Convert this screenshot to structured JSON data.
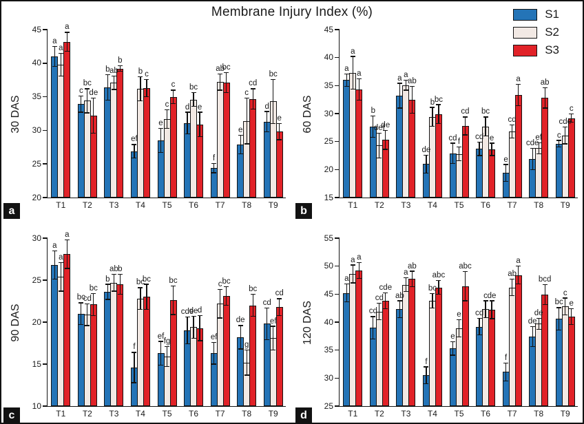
{
  "title": "Membrane Injury Index (%)",
  "legend": {
    "entries": [
      {
        "label": "S1",
        "color": "#2474B7"
      },
      {
        "label": "S2",
        "color": "#F2E9E4"
      },
      {
        "label": "S3",
        "color": "#E12228"
      }
    ]
  },
  "chart_data": [
    {
      "type": "bar",
      "panel_label": "a",
      "ylabel": "30 DAS",
      "ylim": [
        20,
        45
      ],
      "ytick_step": 5,
      "grid": false,
      "categories": [
        "T1",
        "T2",
        "T3",
        "T4",
        "T5",
        "T6",
        "T7",
        "T8",
        "T9"
      ],
      "series": [
        {
          "name": "S1",
          "color": "#2474B7",
          "values": [
            41.0,
            33.9,
            36.4,
            26.9,
            28.5,
            31.1,
            24.4,
            27.9,
            31.3
          ],
          "errors": [
            1.5,
            1.2,
            1.9,
            1.0,
            1.8,
            1.6,
            0.7,
            1.4,
            1.5
          ],
          "letters": [
            "a",
            "c",
            "b",
            "ef",
            "e",
            "d",
            "f",
            "e",
            "d"
          ]
        },
        {
          "name": "S2",
          "color": "#F2E9E4",
          "values": [
            39.8,
            34.4,
            37.1,
            36.2,
            31.7,
            34.6,
            37.2,
            31.4,
            34.3
          ],
          "errors": [
            1.7,
            1.8,
            1.0,
            1.8,
            1.4,
            1.0,
            1.2,
            3.4,
            3.3
          ],
          "letters": [
            "a",
            "bc",
            "ab",
            "b",
            "c",
            "bc",
            "ab",
            "c",
            "bc"
          ]
        },
        {
          "name": "S3",
          "color": "#E12228",
          "values": [
            43.2,
            32.2,
            39.2,
            36.3,
            35.0,
            30.9,
            37.1,
            34.7,
            29.8
          ],
          "errors": [
            1.4,
            2.6,
            0.4,
            1.3,
            1.0,
            1.8,
            1.5,
            1.5,
            1.2
          ],
          "letters": [
            "a",
            "de",
            "b",
            "c",
            "c",
            "e",
            "bc",
            "cd",
            "e"
          ]
        }
      ]
    },
    {
      "type": "bar",
      "panel_label": "b",
      "ylabel": "60 DAS",
      "ylim": [
        15,
        45
      ],
      "ytick_step": 5,
      "grid": false,
      "categories": [
        "T1",
        "T2",
        "T3",
        "T4",
        "T5",
        "T6",
        "T7",
        "T8",
        "T9"
      ],
      "series": [
        {
          "name": "S1",
          "color": "#2474B7",
          "values": [
            36.0,
            27.7,
            33.2,
            21.0,
            22.9,
            23.7,
            19.4,
            21.9,
            24.6
          ],
          "errors": [
            1.1,
            1.9,
            2.2,
            1.6,
            1.8,
            1.2,
            1.5,
            1.9,
            0.6
          ],
          "letters": [
            "a",
            "b",
            "a",
            "de",
            "cd",
            "cd",
            "e",
            "cde",
            "c"
          ]
        },
        {
          "name": "S2",
          "color": "#F2E9E4",
          "values": [
            37.3,
            24.3,
            35.1,
            29.4,
            22.8,
            27.7,
            26.8,
            23.8,
            26.1
          ],
          "errors": [
            2.9,
            2.2,
            0.9,
            1.7,
            1.2,
            1.7,
            1.2,
            1.0,
            1.5
          ],
          "letters": [
            "a",
            "def",
            "a",
            "b",
            "f",
            "bc",
            "cd",
            "ef",
            "cde"
          ]
        },
        {
          "name": "S3",
          "color": "#E12228",
          "values": [
            34.3,
            25.3,
            32.5,
            29.9,
            27.8,
            23.6,
            33.3,
            32.8,
            29.2
          ],
          "errors": [
            1.9,
            1.7,
            2.4,
            1.7,
            1.6,
            1.1,
            1.9,
            1.8,
            0.7
          ],
          "letters": [
            "a",
            "de",
            "ab",
            "bc",
            "cd",
            "e",
            "a",
            "ab",
            "c"
          ]
        }
      ]
    },
    {
      "type": "bar",
      "panel_label": "c",
      "ylabel": "90 DAS",
      "ylim": [
        10,
        30
      ],
      "ytick_step": 5,
      "grid": false,
      "categories": [
        "T1",
        "T2",
        "T3",
        "T4",
        "T5",
        "T6",
        "T7",
        "T8",
        "T9"
      ],
      "series": [
        {
          "name": "S1",
          "color": "#2474B7",
          "values": [
            26.8,
            21.0,
            23.6,
            14.6,
            16.3,
            19.0,
            16.3,
            18.2,
            19.8
          ],
          "errors": [
            1.7,
            1.3,
            0.9,
            1.8,
            1.4,
            1.6,
            1.3,
            1.4,
            1.9
          ],
          "letters": [
            "a",
            "bc",
            "b",
            "f",
            "ef",
            "cde",
            "ef",
            "de",
            "cd"
          ]
        },
        {
          "name": "S2",
          "color": "#F2E9E4",
          "values": [
            25.4,
            20.9,
            24.7,
            22.8,
            15.9,
            19.4,
            22.2,
            15.2,
            18.1
          ],
          "errors": [
            1.7,
            1.3,
            1.0,
            1.3,
            1.2,
            1.3,
            1.7,
            1.5,
            1.4
          ],
          "letters": [
            "a",
            "cd",
            "ab",
            "bc",
            "fg",
            "de",
            "c",
            "g",
            "ef"
          ]
        },
        {
          "name": "S3",
          "color": "#E12228",
          "values": [
            28.1,
            22.1,
            24.5,
            23.0,
            22.6,
            19.3,
            23.1,
            22.0,
            21.8
          ],
          "errors": [
            1.7,
            1.3,
            1.2,
            1.5,
            1.7,
            1.5,
            1.1,
            1.3,
            1.0
          ],
          "letters": [
            "a",
            "bc",
            "b",
            "bc",
            "bc",
            "d",
            "bc",
            "bc",
            "cd"
          ]
        }
      ]
    },
    {
      "type": "bar",
      "panel_label": "d",
      "ylabel": "120 DAS",
      "ylim": [
        25,
        55
      ],
      "ytick_step": 5,
      "grid": false,
      "categories": [
        "T1",
        "T2",
        "T3",
        "T4",
        "T5",
        "T6",
        "T7",
        "T8",
        "T9"
      ],
      "series": [
        {
          "name": "S1",
          "color": "#2474B7",
          "values": [
            45.2,
            39.0,
            42.3,
            30.5,
            35.3,
            39.2,
            31.1,
            37.4,
            40.6
          ],
          "errors": [
            1.6,
            2.0,
            1.5,
            1.5,
            1.2,
            1.5,
            1.6,
            1.8,
            2.0
          ],
          "letters": [
            "a",
            "cd",
            "ab",
            "f",
            "e",
            "cd",
            "f",
            "de",
            "bc"
          ]
        },
        {
          "name": "S2",
          "color": "#F2E9E4",
          "values": [
            48.6,
            41.9,
            46.7,
            43.8,
            38.9,
            42.3,
            46.2,
            39.7,
            42.8
          ],
          "errors": [
            1.6,
            1.5,
            1.2,
            1.3,
            1.5,
            1.5,
            1.5,
            1.0,
            1.5
          ],
          "letters": [
            "a",
            "cd",
            "a",
            "bc",
            "e",
            "c",
            "ab",
            "de",
            "c"
          ]
        },
        {
          "name": "S3",
          "color": "#E12228",
          "values": [
            49.2,
            43.8,
            47.7,
            46.2,
            46.4,
            42.2,
            48.4,
            44.9,
            41.0
          ],
          "errors": [
            1.4,
            1.4,
            1.4,
            1.2,
            2.6,
            1.6,
            1.6,
            1.8,
            1.4
          ],
          "letters": [
            "a",
            "cde",
            "ab",
            "abc",
            "abc",
            "de",
            "a",
            "bcd",
            "e"
          ]
        }
      ]
    }
  ]
}
